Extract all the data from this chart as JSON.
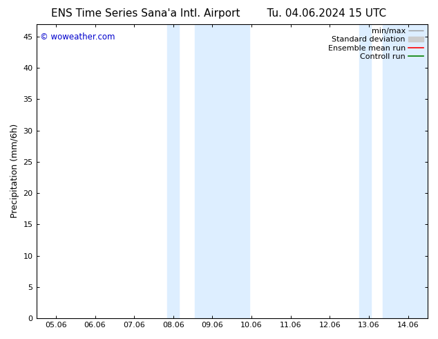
{
  "title_left": "ENS Time Series Sana'a Intl. Airport",
  "title_right": "Tu. 04.06.2024 15 UTC",
  "ylabel": "Precipitation (mm/6h)",
  "watermark": "© woweather.com",
  "x_tick_labels": [
    "05.06",
    "06.06",
    "07.06",
    "08.06",
    "09.06",
    "10.06",
    "11.06",
    "12.06",
    "13.06",
    "14.06"
  ],
  "x_tick_positions": [
    0,
    1,
    2,
    3,
    4,
    5,
    6,
    7,
    8,
    9
  ],
  "ylim": [
    0,
    47
  ],
  "yticks": [
    0,
    5,
    10,
    15,
    20,
    25,
    30,
    35,
    40,
    45
  ],
  "xlim": [
    -0.5,
    9.5
  ],
  "shaded_regions": [
    {
      "x_start": 2.85,
      "x_end": 3.15,
      "color": "#ddeeff"
    },
    {
      "x_start": 3.55,
      "x_end": 4.95,
      "color": "#ddeeff"
    },
    {
      "x_start": 7.75,
      "x_end": 8.05,
      "color": "#ddeeff"
    },
    {
      "x_start": 8.35,
      "x_end": 9.5,
      "color": "#ddeeff"
    }
  ],
  "watermark_color": "#0000cc",
  "background_color": "#ffffff",
  "title_fontsize": 11,
  "tick_label_fontsize": 8,
  "ylabel_fontsize": 9,
  "legend_fontsize": 8
}
